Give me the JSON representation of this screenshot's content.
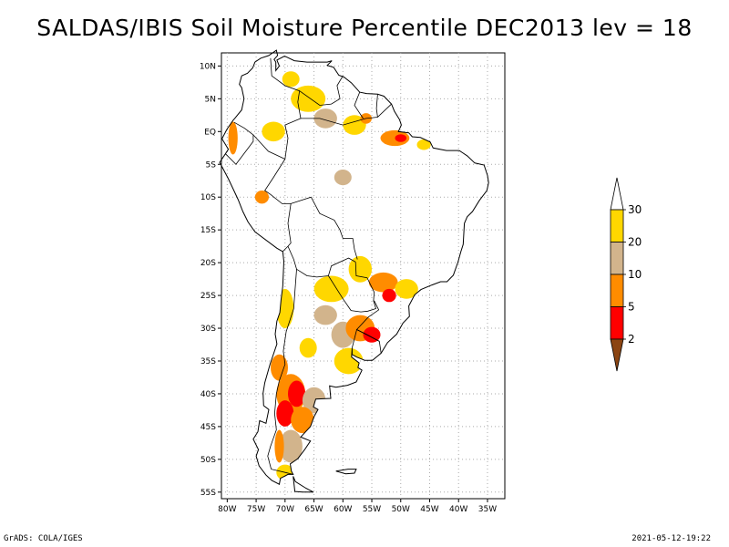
{
  "title": "SALDAS/IBIS Soil Moisture Percentile DEC2013 lev = 18",
  "footer": {
    "left": "GrADS: COLA/IGES",
    "right": "2021-05-12-19:22"
  },
  "map": {
    "region": "South America",
    "lon_range": [
      -81,
      -32
    ],
    "lat_range": [
      -56,
      12
    ],
    "lat_ticks": [
      {
        "value": 10,
        "label": "10N"
      },
      {
        "value": 5,
        "label": "5N"
      },
      {
        "value": 0,
        "label": "EQ"
      },
      {
        "value": -5,
        "label": "5S"
      },
      {
        "value": -10,
        "label": "10S"
      },
      {
        "value": -15,
        "label": "15S"
      },
      {
        "value": -20,
        "label": "20S"
      },
      {
        "value": -25,
        "label": "25S"
      },
      {
        "value": -30,
        "label": "30S"
      },
      {
        "value": -35,
        "label": "35S"
      },
      {
        "value": -40,
        "label": "40S"
      },
      {
        "value": -45,
        "label": "45S"
      },
      {
        "value": -50,
        "label": "50S"
      },
      {
        "value": -55,
        "label": "55S"
      }
    ],
    "lon_ticks": [
      {
        "value": -80,
        "label": "80W"
      },
      {
        "value": -75,
        "label": "75W"
      },
      {
        "value": -70,
        "label": "70W"
      },
      {
        "value": -65,
        "label": "65W"
      },
      {
        "value": -60,
        "label": "60W"
      },
      {
        "value": -55,
        "label": "55W"
      },
      {
        "value": -50,
        "label": "50W"
      },
      {
        "value": -45,
        "label": "45W"
      },
      {
        "value": -40,
        "label": "40W"
      },
      {
        "value": -35,
        "label": "35W"
      }
    ],
    "patches": [
      {
        "lon": -69,
        "lat": 8,
        "rx": 1.5,
        "ry": 1.2,
        "cat": "gold"
      },
      {
        "lon": -66,
        "lat": 5,
        "rx": 3.0,
        "ry": 2.0,
        "cat": "gold"
      },
      {
        "lon": -63,
        "lat": 2,
        "rx": 2.0,
        "ry": 1.5,
        "cat": "tan"
      },
      {
        "lon": -58,
        "lat": 1,
        "rx": 2.0,
        "ry": 1.5,
        "cat": "gold"
      },
      {
        "lon": -56,
        "lat": 2,
        "rx": 1.0,
        "ry": 0.8,
        "cat": "orange"
      },
      {
        "lon": -51,
        "lat": -1,
        "rx": 2.5,
        "ry": 1.2,
        "cat": "orange"
      },
      {
        "lon": -50,
        "lat": -1,
        "rx": 1.0,
        "ry": 0.6,
        "cat": "red"
      },
      {
        "lon": -46,
        "lat": -2,
        "rx": 1.2,
        "ry": 0.8,
        "cat": "gold"
      },
      {
        "lon": -79,
        "lat": -1,
        "rx": 0.8,
        "ry": 2.5,
        "cat": "orange"
      },
      {
        "lon": -72,
        "lat": 0,
        "rx": 2.0,
        "ry": 1.5,
        "cat": "gold"
      },
      {
        "lon": -60,
        "lat": -7,
        "rx": 1.5,
        "ry": 1.2,
        "cat": "tan"
      },
      {
        "lon": -74,
        "lat": -10,
        "rx": 1.2,
        "ry": 1.0,
        "cat": "orange"
      },
      {
        "lon": -62,
        "lat": -24,
        "rx": 3.0,
        "ry": 2.0,
        "cat": "gold"
      },
      {
        "lon": -57,
        "lat": -21,
        "rx": 2.0,
        "ry": 2.0,
        "cat": "gold"
      },
      {
        "lon": -53,
        "lat": -23,
        "rx": 2.5,
        "ry": 1.5,
        "cat": "orange"
      },
      {
        "lon": -52,
        "lat": -25,
        "rx": 1.2,
        "ry": 1.0,
        "cat": "red"
      },
      {
        "lon": -49,
        "lat": -24,
        "rx": 2.0,
        "ry": 1.5,
        "cat": "gold"
      },
      {
        "lon": -70,
        "lat": -27,
        "rx": 1.5,
        "ry": 3.0,
        "cat": "gold"
      },
      {
        "lon": -63,
        "lat": -28,
        "rx": 2.0,
        "ry": 1.5,
        "cat": "tan"
      },
      {
        "lon": -60,
        "lat": -31,
        "rx": 2.0,
        "ry": 2.0,
        "cat": "tan"
      },
      {
        "lon": -57,
        "lat": -30,
        "rx": 2.5,
        "ry": 2.0,
        "cat": "orange"
      },
      {
        "lon": -55,
        "lat": -31,
        "rx": 1.5,
        "ry": 1.2,
        "cat": "red"
      },
      {
        "lon": -59,
        "lat": -35,
        "rx": 2.5,
        "ry": 2.0,
        "cat": "gold"
      },
      {
        "lon": -66,
        "lat": -33,
        "rx": 1.5,
        "ry": 1.5,
        "cat": "gold"
      },
      {
        "lon": -71,
        "lat": -36,
        "rx": 1.5,
        "ry": 2.0,
        "cat": "orange"
      },
      {
        "lon": -69,
        "lat": -40,
        "rx": 2.5,
        "ry": 3.0,
        "cat": "orange"
      },
      {
        "lon": -68,
        "lat": -40,
        "rx": 1.5,
        "ry": 2.0,
        "cat": "red"
      },
      {
        "lon": -70,
        "lat": -43,
        "rx": 1.5,
        "ry": 2.0,
        "cat": "red"
      },
      {
        "lon": -65,
        "lat": -41,
        "rx": 2.0,
        "ry": 2.0,
        "cat": "tan"
      },
      {
        "lon": -67,
        "lat": -44,
        "rx": 2.0,
        "ry": 2.0,
        "cat": "orange"
      },
      {
        "lon": -69,
        "lat": -48,
        "rx": 2.0,
        "ry": 2.5,
        "cat": "tan"
      },
      {
        "lon": -71,
        "lat": -48,
        "rx": 0.8,
        "ry": 2.5,
        "cat": "orange"
      },
      {
        "lon": -70,
        "lat": -52,
        "rx": 1.5,
        "ry": 1.2,
        "cat": "gold"
      }
    ]
  },
  "colorbar": {
    "levels": [
      "2",
      "5",
      "10",
      "20",
      "30"
    ],
    "colors": {
      "below": "#8b4513",
      "red": "#ff0000",
      "orange": "#ff8c00",
      "tan": "#d2b48c",
      "gold": "#ffd700",
      "above": "#ffffff"
    }
  }
}
